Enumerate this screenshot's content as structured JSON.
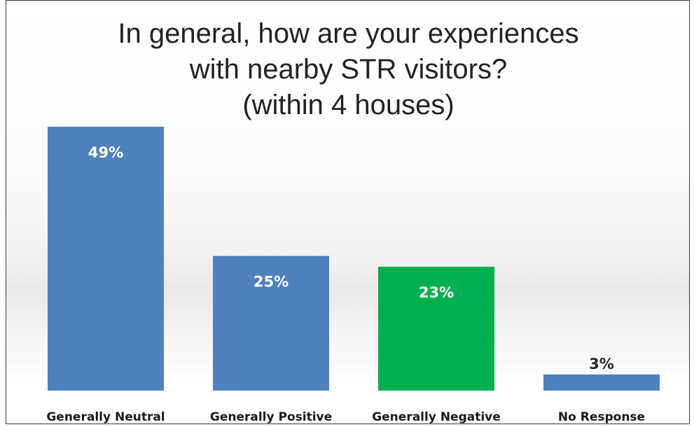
{
  "chart_data": {
    "type": "bar",
    "title_lines": [
      "In general, how are your experiences",
      "with nearby STR visitors?",
      "(within 4 houses)"
    ],
    "categories": [
      "Generally Neutral",
      "Generally Positive",
      "Generally Negative",
      "No Response"
    ],
    "values": [
      49,
      25,
      23,
      3
    ],
    "value_labels": [
      "49%",
      "25%",
      "23%",
      "3%"
    ],
    "unit": "%",
    "bar_colors": [
      "#4f81bd",
      "#4f81bd",
      "#00b050",
      "#4f81bd"
    ],
    "ylim": [
      0,
      49
    ],
    "grid": false,
    "legend": "none",
    "xlabel": "",
    "ylabel": ""
  }
}
